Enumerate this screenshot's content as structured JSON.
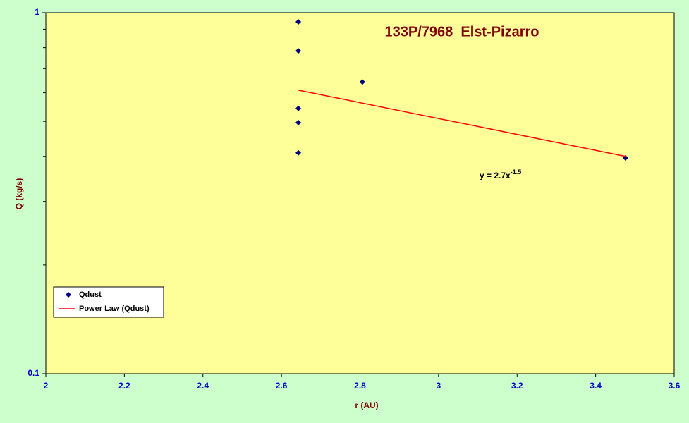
{
  "chart_data": {
    "type": "scatter",
    "title": "133P/7968  Elst-Pizarro",
    "xlabel": "r (AU)",
    "ylabel": "Q (kg/s)",
    "log_y": true,
    "xlim": [
      2,
      3.6
    ],
    "ylim": [
      0.1,
      1
    ],
    "xticks": [
      2,
      2.2,
      2.4,
      2.6,
      2.8,
      3,
      3.2,
      3.4,
      3.6
    ],
    "yticks": [
      0.1,
      1
    ],
    "yminorticks": [
      0.2,
      0.3,
      0.4,
      0.5,
      0.6,
      0.7,
      0.8,
      0.9
    ],
    "legend": "lower left",
    "series": [
      {
        "name": "Qdust",
        "type": "scatter",
        "color": "#000080",
        "x": [
          2.643,
          2.643,
          2.643,
          2.643,
          2.643,
          2.806,
          3.476
        ],
        "values": [
          0.943,
          0.784,
          0.543,
          0.496,
          0.409,
          0.643,
          0.396
        ]
      },
      {
        "name": "Power Law (Qdust)",
        "type": "line",
        "color": "#ff0000",
        "x": [
          2.643,
          3.476
        ],
        "values": [
          0.61,
          0.4
        ]
      }
    ],
    "annotation": {
      "text": "y = 2.7x",
      "superscript": "-1.5"
    }
  }
}
